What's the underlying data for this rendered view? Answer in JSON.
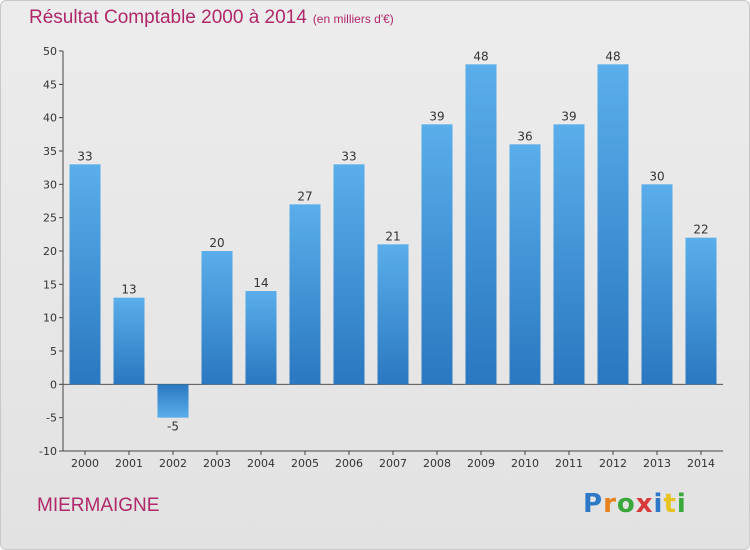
{
  "chart_data": {
    "type": "bar",
    "title": "Résultat Comptable 2000 à 2014",
    "subtitle": "(en milliers d'€)",
    "categories": [
      "2000",
      "2001",
      "2002",
      "2003",
      "2004",
      "2005",
      "2006",
      "2007",
      "2008",
      "2009",
      "2010",
      "2011",
      "2012",
      "2013",
      "2014"
    ],
    "values": [
      33,
      13,
      -5,
      20,
      14,
      27,
      33,
      21,
      39,
      48,
      36,
      39,
      48,
      30,
      22
    ],
    "ylim": [
      -10,
      50
    ],
    "yticks": [
      -10,
      -5,
      0,
      5,
      10,
      15,
      20,
      25,
      30,
      35,
      40,
      45,
      50
    ],
    "xlabel": "",
    "ylabel": "",
    "grid": false
  },
  "commune": "MIERMAIGNE",
  "brand": {
    "letters": [
      "P",
      "r",
      "o",
      "x",
      "i",
      "t",
      "i"
    ],
    "colors": [
      "#2e78c8",
      "#e8821e",
      "#3aa83a",
      "#d83a3a",
      "#2e78c8",
      "#e8c21e",
      "#3aa83a"
    ]
  },
  "colors": {
    "title": "#b0286a",
    "bar_light": "#5aaeea",
    "bar_dark": "#2a78c0"
  }
}
